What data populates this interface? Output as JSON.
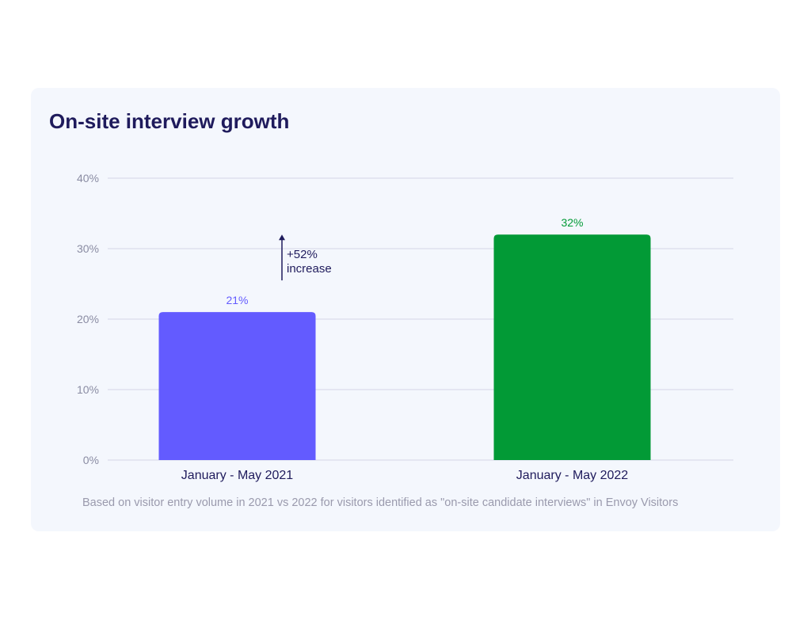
{
  "title": "On-site interview growth",
  "footnote": "Based on visitor entry volume in 2021 vs 2022 for visitors identified as \"on-site candidate interviews\" in Envoy Visitors",
  "annotation": {
    "line1": "+52%",
    "line2": "increase"
  },
  "chart_data": {
    "type": "bar",
    "title": "On-site interview growth",
    "categories": [
      "January - May 2021",
      "January - May 2022"
    ],
    "values": [
      21,
      32
    ],
    "data_labels": [
      "21%",
      "32%"
    ],
    "colors": [
      "#635bff",
      "#029a36"
    ],
    "label_colors": [
      "#635bff",
      "#029a36"
    ],
    "ylim": [
      0,
      40
    ],
    "yticks": [
      0,
      10,
      20,
      30,
      40
    ],
    "ytick_labels": [
      "0%",
      "10%",
      "20%",
      "30%",
      "40%"
    ],
    "grid": true,
    "xlabel": "",
    "ylabel": ""
  },
  "colors": {
    "title": "#1f1b5c",
    "axis_text": "#8a8ca3",
    "grid": "#d3d6e6",
    "annotation": "#1f1b5c"
  }
}
